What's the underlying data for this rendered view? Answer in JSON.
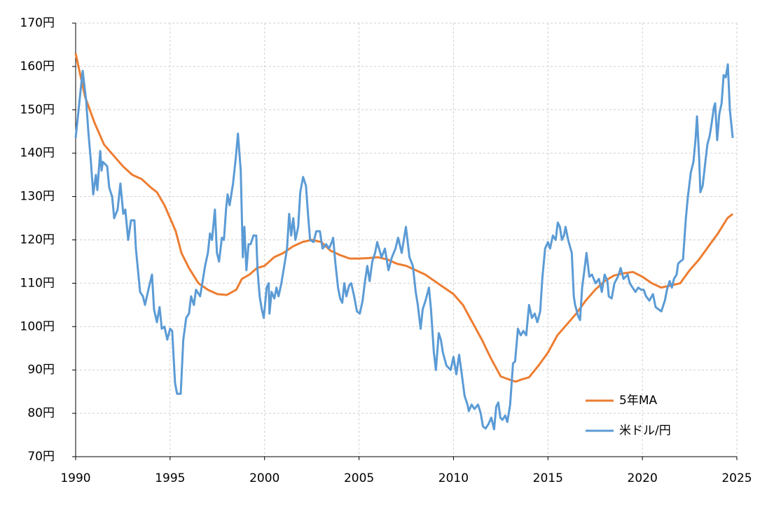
{
  "chart_data": {
    "type": "line",
    "xlim": [
      1990,
      2025
    ],
    "xticks": [
      1990,
      1995,
      2000,
      2005,
      2010,
      2015,
      2020,
      2025
    ],
    "ylim": [
      70,
      170
    ],
    "yticks": [
      {
        "value": 70,
        "label": "70円"
      },
      {
        "value": 80,
        "label": "80円"
      },
      {
        "value": 90,
        "label": "90円"
      },
      {
        "value": 100,
        "label": "100円"
      },
      {
        "value": 110,
        "label": "110円"
      },
      {
        "value": 120,
        "label": "120円"
      },
      {
        "value": 130,
        "label": "130円"
      },
      {
        "value": 140,
        "label": "140円"
      },
      {
        "value": 150,
        "label": "150円"
      },
      {
        "value": 160,
        "label": "160円"
      },
      {
        "value": 170,
        "label": "170円"
      }
    ],
    "grid": true,
    "legend": "lower right",
    "series": [
      {
        "name": "5年MA",
        "color": "#ed7d31",
        "x": [
          1990,
          1990.5,
          1991,
          1991.5,
          1992,
          1992.5,
          1993,
          1993.5,
          1994,
          1994.3,
          1994.7,
          1995,
          1995.3,
          1995.6,
          1996,
          1996.5,
          1997,
          1997.5,
          1998,
          1998.5,
          1998.8,
          1999.2,
          1999.6,
          2000,
          2000.5,
          2001,
          2001.5,
          2002,
          2002.5,
          2003,
          2003.5,
          2004,
          2004.5,
          2005,
          2005.5,
          2006,
          2006.5,
          2007,
          2007.5,
          2008,
          2008.5,
          2009,
          2009.5,
          2010,
          2010.5,
          2011,
          2011.5,
          2012,
          2012.5,
          2013,
          2013.3,
          2013.6,
          2014,
          2014.5,
          2015,
          2015.5,
          2016,
          2016.5,
          2017,
          2017.5,
          2018,
          2018.5,
          2019,
          2019.5,
          2020,
          2020.5,
          2021,
          2021.5,
          2022,
          2022.5,
          2023,
          2023.5,
          2024,
          2024.5,
          2024.78
        ],
        "values": [
          163,
          153,
          147,
          142,
          139.5,
          137,
          135,
          134,
          132,
          131,
          128,
          125,
          122,
          117,
          113.5,
          110,
          108.5,
          107.5,
          107.3,
          108.5,
          111,
          112,
          113.5,
          114,
          116,
          117,
          118.5,
          119.5,
          120,
          119.5,
          117.5,
          116.5,
          115.7,
          115.7,
          115.8,
          116,
          115.5,
          114.5,
          114,
          113,
          112,
          110.5,
          109,
          107.5,
          105,
          101,
          97,
          92.5,
          88.5,
          87.7,
          87.3,
          87.8,
          88.3,
          91,
          94,
          98,
          100.5,
          103,
          106,
          108.5,
          110.5,
          111.8,
          112.3,
          112.6,
          111.5,
          110,
          109,
          109.5,
          110,
          113,
          115.5,
          118.5,
          121.5,
          125,
          126
        ]
      },
      {
        "name": "米ドル/円",
        "color": "#5b9bd5",
        "x": [
          1990.0,
          1990.37,
          1990.56,
          1990.67,
          1990.81,
          1990.93,
          1991.07,
          1991.15,
          1991.3,
          1991.37,
          1991.44,
          1991.67,
          1991.78,
          1991.93,
          1992.04,
          1992.22,
          1992.37,
          1992.52,
          1992.63,
          1992.78,
          1992.93,
          1993.11,
          1993.19,
          1993.41,
          1993.56,
          1993.67,
          1993.85,
          1994.04,
          1994.15,
          1994.3,
          1994.44,
          1994.56,
          1994.7,
          1994.85,
          1995.0,
          1995.11,
          1995.26,
          1995.37,
          1995.56,
          1995.7,
          1995.85,
          1996.0,
          1996.11,
          1996.26,
          1996.37,
          1996.59,
          1996.74,
          1996.85,
          1997.0,
          1997.11,
          1997.22,
          1997.37,
          1997.48,
          1997.59,
          1997.74,
          1997.85,
          1997.96,
          1998.04,
          1998.15,
          1998.33,
          1998.48,
          1998.59,
          1998.74,
          1998.85,
          1998.93,
          1999.04,
          1999.15,
          1999.26,
          1999.41,
          1999.56,
          1999.63,
          1999.74,
          1999.85,
          1999.96,
          2000.11,
          2000.22,
          2000.26,
          2000.37,
          2000.52,
          2000.63,
          2000.74,
          2000.89,
          2001.04,
          2001.19,
          2001.3,
          2001.41,
          2001.52,
          2001.63,
          2001.78,
          2001.89,
          2002.04,
          2002.19,
          2002.3,
          2002.41,
          2002.59,
          2002.74,
          2002.93,
          2003.07,
          2003.26,
          2003.41,
          2003.56,
          2003.63,
          2003.74,
          2003.89,
          2004.0,
          2004.11,
          2004.22,
          2004.33,
          2004.48,
          2004.59,
          2004.74,
          2004.89,
          2005.04,
          2005.19,
          2005.3,
          2005.44,
          2005.56,
          2005.7,
          2005.85,
          2005.96,
          2006.19,
          2006.37,
          2006.56,
          2006.74,
          2006.93,
          2007.07,
          2007.26,
          2007.48,
          2007.67,
          2007.85,
          2008.0,
          2008.11,
          2008.26,
          2008.37,
          2008.52,
          2008.7,
          2008.81,
          2008.96,
          2009.07,
          2009.22,
          2009.33,
          2009.44,
          2009.63,
          2009.85,
          2010.0,
          2010.15,
          2010.3,
          2010.44,
          2010.59,
          2010.74,
          2010.81,
          2010.96,
          2011.11,
          2011.3,
          2011.44,
          2011.56,
          2011.7,
          2011.85,
          2012.0,
          2012.15,
          2012.26,
          2012.37,
          2012.48,
          2012.59,
          2012.74,
          2012.85,
          2013.0,
          2013.15,
          2013.26,
          2013.41,
          2013.56,
          2013.7,
          2013.85,
          2014.0,
          2014.15,
          2014.3,
          2014.44,
          2014.59,
          2014.7,
          2014.85,
          2015.0,
          2015.11,
          2015.26,
          2015.41,
          2015.52,
          2015.63,
          2015.74,
          2015.85,
          2015.93,
          2016.07,
          2016.26,
          2016.37,
          2016.44,
          2016.59,
          2016.7,
          2016.81,
          2016.93,
          2017.04,
          2017.19,
          2017.33,
          2017.52,
          2017.7,
          2017.85,
          2018.0,
          2018.15,
          2018.22,
          2018.37,
          2018.52,
          2018.7,
          2018.85,
          2019.0,
          2019.22,
          2019.33,
          2019.48,
          2019.63,
          2019.78,
          2019.93,
          2020.07,
          2020.19,
          2020.37,
          2020.56,
          2020.7,
          2020.85,
          2021.0,
          2021.19,
          2021.3,
          2021.44,
          2021.56,
          2021.67,
          2021.81,
          2021.89,
          2022.0,
          2022.15,
          2022.3,
          2022.41,
          2022.56,
          2022.7,
          2022.81,
          2022.89,
          2023.0,
          2023.07,
          2023.19,
          2023.33,
          2023.44,
          2023.56,
          2023.67,
          2023.78,
          2023.85,
          2023.96,
          2024.07,
          2024.19,
          2024.3,
          2024.41,
          2024.52,
          2024.63,
          2024.78
        ],
        "values": [
          143.5,
          159,
          152,
          145,
          138,
          130.5,
          135,
          131.5,
          140.5,
          136,
          138,
          137,
          132,
          130,
          125,
          127,
          133,
          126,
          127,
          120,
          124.5,
          124.5,
          118,
          108,
          107,
          105,
          108.5,
          112,
          104,
          101,
          104.5,
          99.5,
          100,
          97,
          99.5,
          99,
          87,
          84.5,
          84.5,
          97,
          102,
          103,
          107,
          105,
          108.5,
          107,
          111,
          114,
          117,
          121.5,
          120,
          127,
          117,
          115,
          120.5,
          120,
          127,
          130.5,
          128,
          133,
          139,
          144.5,
          136,
          116,
          123,
          113,
          119,
          119,
          121,
          121,
          113,
          107,
          104,
          102,
          109,
          110,
          103,
          108,
          106.5,
          109,
          107,
          110,
          114,
          118,
          126,
          121,
          125,
          120,
          123,
          131,
          134.5,
          132.5,
          126,
          120,
          119.5,
          122,
          122,
          118,
          119,
          118,
          119.5,
          120.5,
          115,
          109,
          106.5,
          105.5,
          110,
          107,
          109.5,
          110,
          107,
          103.5,
          103,
          106,
          110,
          114,
          110.5,
          115,
          117,
          119.5,
          116,
          118,
          113,
          116,
          118,
          120.5,
          117,
          123,
          116,
          114,
          108,
          105,
          99.5,
          104,
          106,
          109,
          104,
          94,
          90,
          98.5,
          97,
          94,
          91,
          90,
          93,
          89,
          93.5,
          89,
          84,
          82,
          80.5,
          82,
          81,
          82,
          80,
          77,
          76.5,
          77.5,
          79,
          76.3,
          81.5,
          82.5,
          79,
          78.5,
          79.5,
          78,
          82,
          91.5,
          92,
          99.5,
          98,
          99,
          98,
          105,
          102,
          103,
          101,
          103.5,
          111,
          118,
          119.5,
          118,
          121,
          120,
          124,
          123,
          120,
          121,
          123,
          120,
          117,
          107,
          105,
          102.5,
          101.5,
          109,
          113,
          117,
          111.5,
          112,
          110,
          111,
          108,
          112,
          110.5,
          107,
          106.5,
          110,
          111.5,
          113.5,
          111,
          112,
          110,
          109,
          108,
          109,
          108.5,
          108.5,
          107,
          106,
          107.5,
          104.5,
          104,
          103.5,
          106,
          108.5,
          110.5,
          109,
          111,
          112,
          114.5,
          115,
          115.5,
          125,
          130,
          135.5,
          138,
          143,
          148.5,
          139,
          131,
          132.5,
          138,
          142,
          144,
          147,
          150.5,
          151.5,
          143,
          149,
          151.5,
          158,
          157.5,
          160.5,
          150,
          143.5
        ]
      }
    ]
  }
}
